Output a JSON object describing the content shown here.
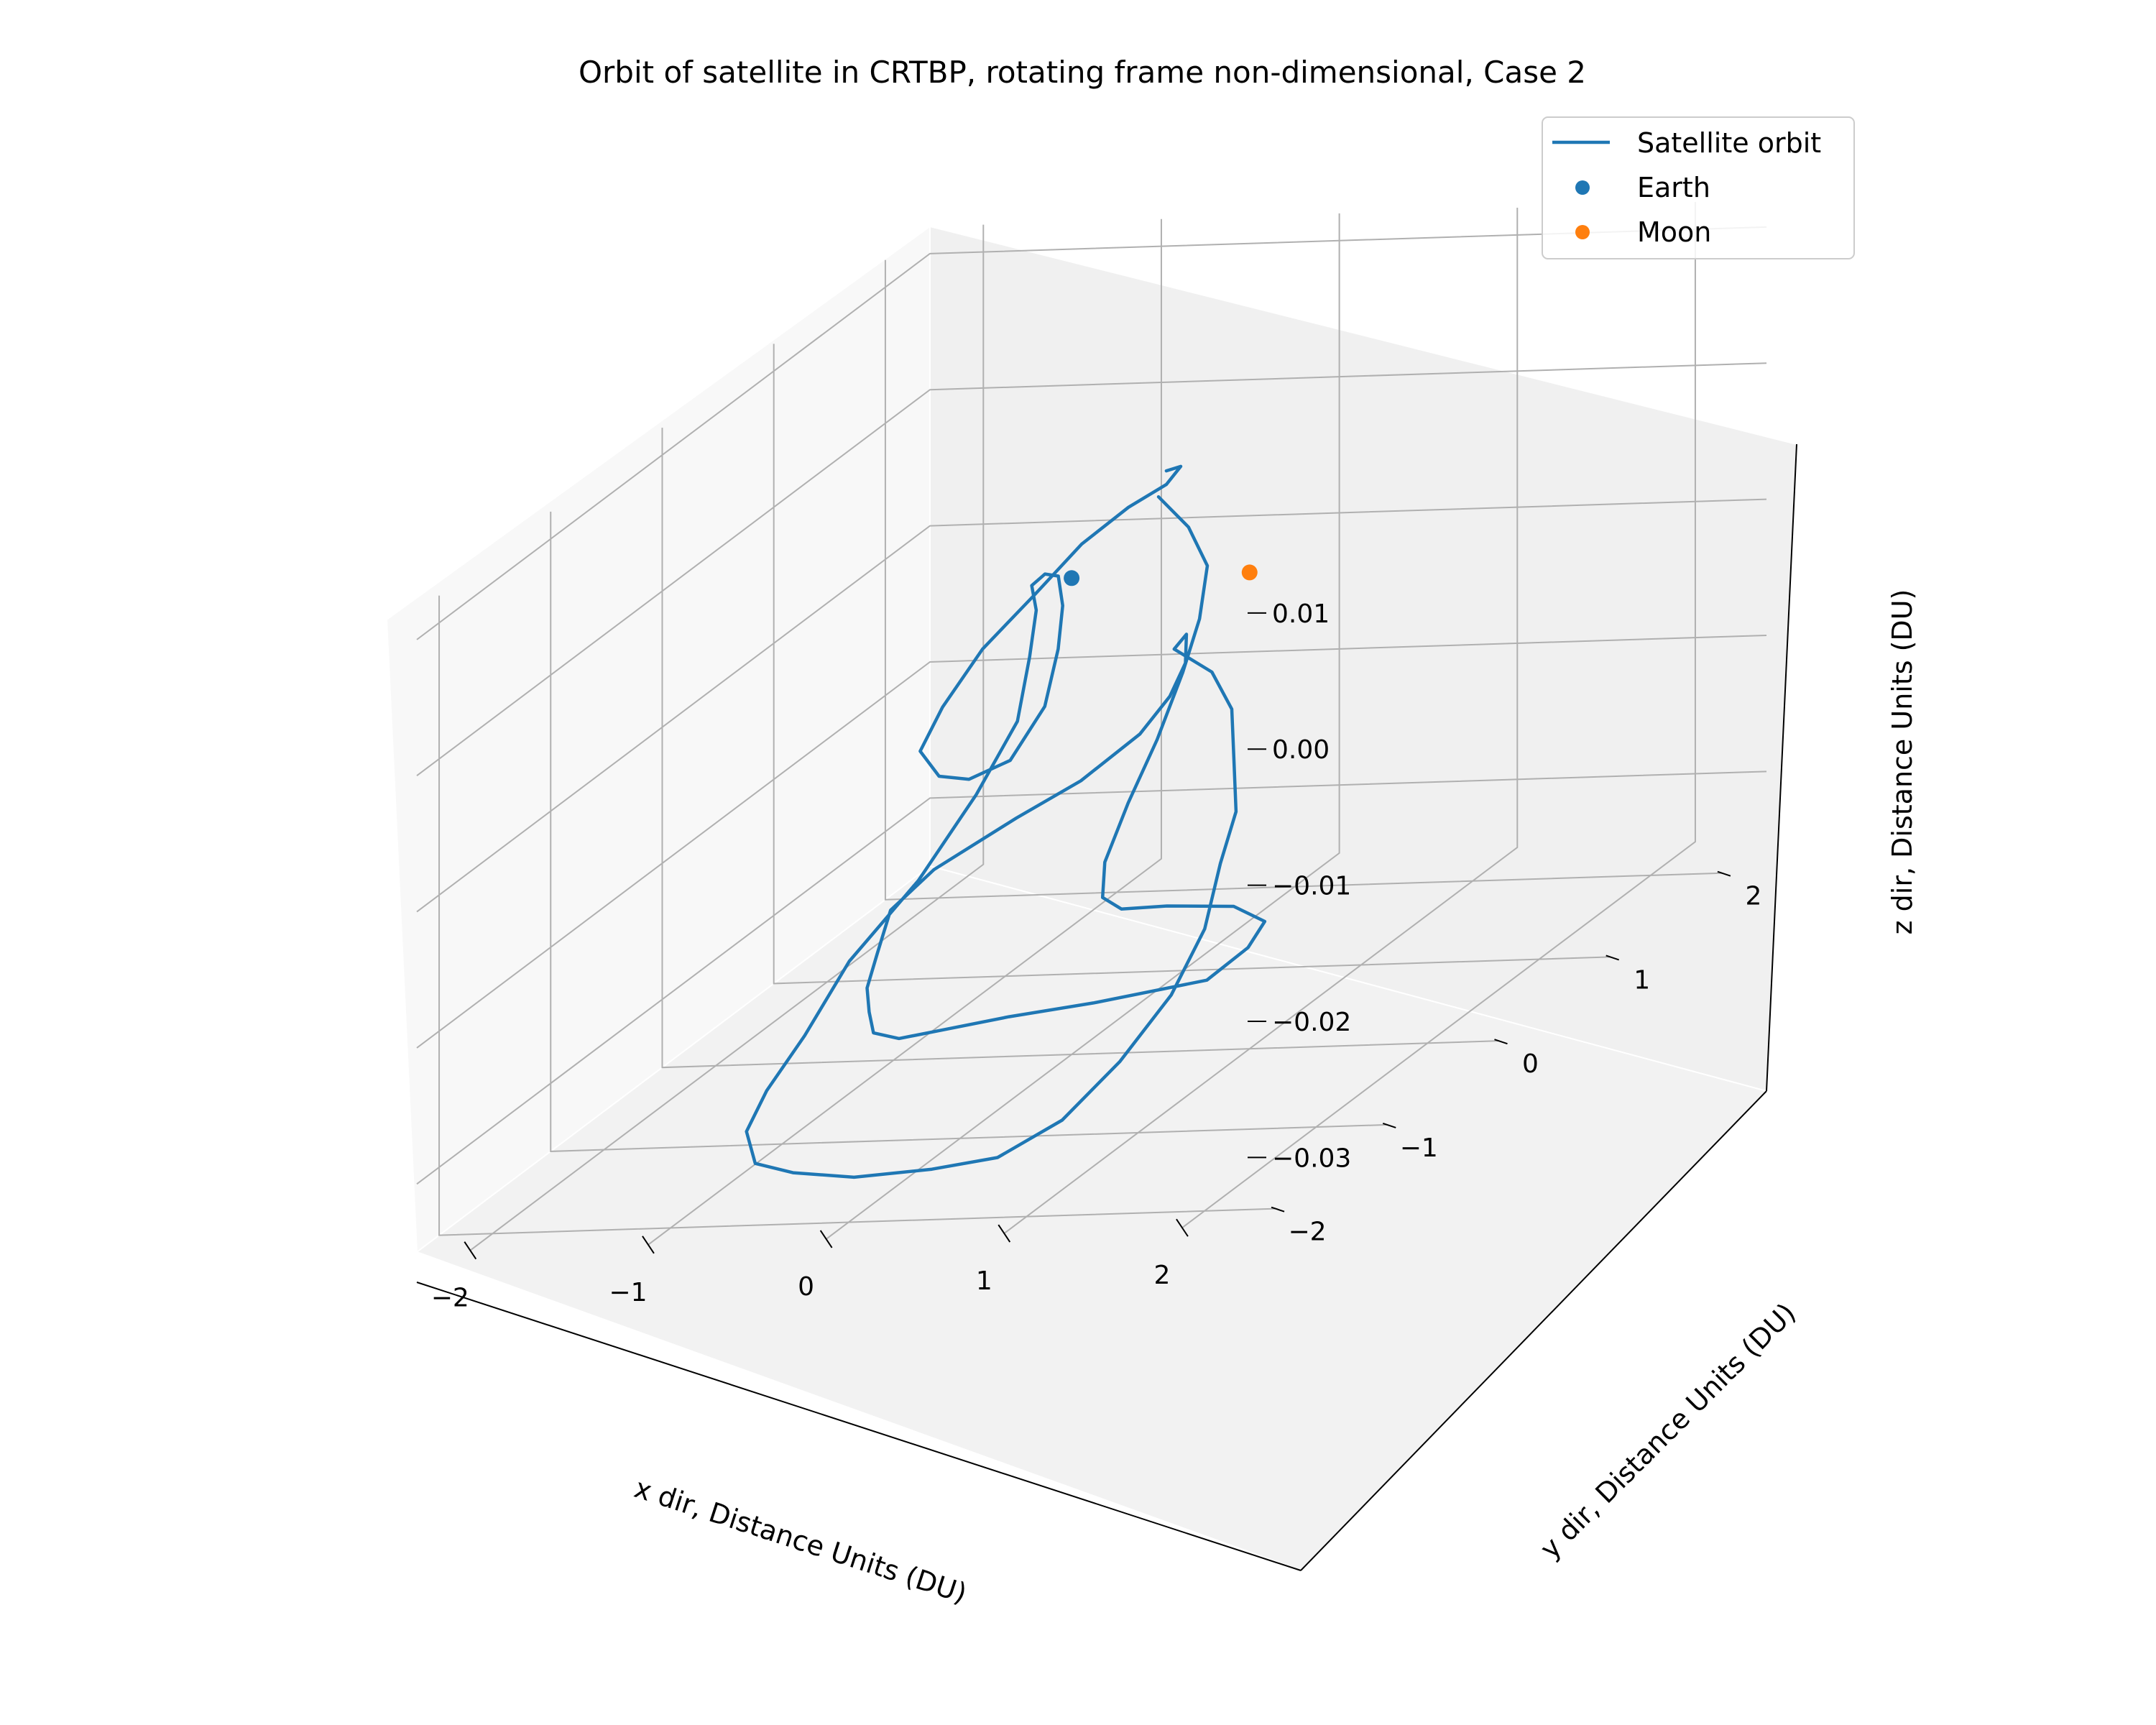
{
  "chart_data": {
    "type": "line",
    "projection": "3d",
    "title": "Orbit of satellite in CRTBP, rotating frame non-dimensional, Case 2",
    "xlabel": "x dir, Distance Units (DU)",
    "ylabel": "y dir, Distance Units (DU)",
    "zlabel": "z dir, Distance Units (DU)",
    "xlim": [
      -2.3,
      2.4
    ],
    "ylim": [
      -2.2,
      2.4
    ],
    "zlim": [
      -0.035,
      0.012
    ],
    "x_ticks": [
      -2,
      -1,
      0,
      1,
      2
    ],
    "x_tick_labels": [
      "−2",
      "−1",
      "0",
      "1",
      "2"
    ],
    "y_ticks": [
      -2,
      -1,
      0,
      1,
      2
    ],
    "y_tick_labels": [
      "−2",
      "−1",
      "0",
      "1",
      "2"
    ],
    "z_ticks": [
      -0.03,
      -0.02,
      -0.01,
      0.0,
      0.01
    ],
    "z_tick_labels": [
      "−0.03",
      "−0.02",
      "−0.01",
      "0.00",
      "0.01"
    ],
    "grid": true,
    "legend_position": "top-right",
    "series": [
      {
        "name": "Satellite orbit",
        "kind": "line",
        "color": "#1f77b4",
        "x": [
          0.3,
          0.5,
          0.7,
          0.75,
          0.75,
          0.7,
          0.6,
          0.5,
          0.55,
          0.75,
          1.1,
          1.6,
          1.9,
          1.9,
          1.7,
          1.0,
          0.4,
          -0.1,
          -0.5,
          -0.8,
          -1.0,
          -1.2,
          -1.4,
          -1.5,
          -1.55,
          -1.4,
          -1.0,
          -0.7,
          -0.4,
          -0.2,
          -0.05,
          0.05,
          0.2,
          0.6,
          0.9,
          1.1,
          1.3,
          1.4,
          1.5,
          1.5,
          1.4,
          1.2,
          0.9,
          0.5,
          0.0,
          -0.5,
          -0.9,
          -1.2,
          -1.4,
          -1.5,
          -1.5,
          -1.3,
          -1.1,
          -0.9,
          -0.8,
          -0.7,
          -0.6,
          -0.4,
          -0.2,
          -0.05,
          0.05,
          0.1,
          0.0,
          -0.2,
          -0.4,
          -0.6,
          -0.6,
          -0.5,
          -0.3,
          -0.1,
          0.1,
          0.25,
          0.3,
          0.25
        ],
        "y": [
          0.3,
          0.25,
          0.1,
          -0.05,
          -0.2,
          -0.35,
          -0.45,
          -0.5,
          -0.6,
          -0.75,
          -0.9,
          -1.1,
          -1.3,
          -1.45,
          -1.5,
          -1.4,
          -1.2,
          -1.0,
          -0.75,
          -0.5,
          -0.2,
          0.1,
          0.4,
          0.65,
          0.85,
          1.0,
          1.1,
          1.2,
          1.25,
          1.2,
          1.1,
          0.95,
          0.6,
          0.3,
          0.0,
          -0.3,
          -0.6,
          -0.9,
          -1.2,
          -1.5,
          -1.8,
          -2.0,
          -2.1,
          -2.05,
          -1.95,
          -1.7,
          -1.4,
          -1.0,
          -0.5,
          0.0,
          0.4,
          0.7,
          0.9,
          0.95,
          0.9,
          0.8,
          0.6,
          0.4,
          0.2,
          0.0,
          -0.2,
          -0.4,
          -0.55,
          -0.6,
          -0.55,
          -0.4,
          -0.2,
          0.0,
          0.15,
          0.25,
          0.35,
          0.45,
          0.5,
          0.45
        ],
        "z": [
          0.004,
          0.002,
          0.0,
          -0.003,
          -0.006,
          -0.01,
          -0.014,
          -0.018,
          -0.02,
          -0.02,
          -0.019,
          -0.018,
          -0.018,
          -0.019,
          -0.021,
          -0.023,
          -0.025,
          -0.027,
          -0.029,
          -0.03,
          -0.031,
          -0.032,
          -0.032,
          -0.031,
          -0.029,
          -0.027,
          -0.024,
          -0.022,
          -0.019,
          -0.016,
          -0.013,
          -0.01,
          -0.009,
          -0.009,
          -0.01,
          -0.012,
          -0.014,
          -0.016,
          -0.019,
          -0.022,
          -0.025,
          -0.028,
          -0.03,
          -0.031,
          -0.032,
          -0.033,
          -0.034,
          -0.034,
          -0.034,
          -0.033,
          -0.03,
          -0.026,
          -0.021,
          -0.016,
          -0.011,
          -0.007,
          -0.004,
          -0.002,
          -0.001,
          -0.002,
          -0.004,
          -0.007,
          -0.01,
          -0.011,
          -0.011,
          -0.01,
          -0.008,
          -0.005,
          -0.002,
          0.001,
          0.003,
          0.004,
          0.005,
          0.005
        ]
      },
      {
        "name": "Earth",
        "kind": "scatter",
        "color": "#1f77b4",
        "x": [
          0.0
        ],
        "y": [
          0.0
        ],
        "z": [
          0.0
        ]
      },
      {
        "name": "Moon",
        "kind": "scatter",
        "color": "#ff7f0e",
        "x": [
          1.0
        ],
        "y": [
          0.0
        ],
        "z": [
          0.0
        ]
      }
    ]
  }
}
